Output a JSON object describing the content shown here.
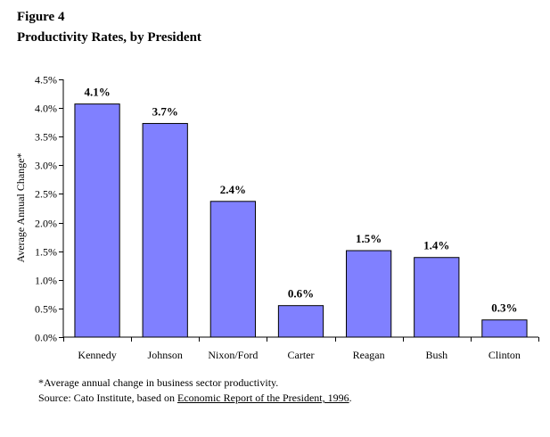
{
  "figure": {
    "label": "Figure 4",
    "title": "Productivity Rates, by President"
  },
  "chart_data": {
    "type": "bar",
    "title": "Productivity Rates, by President",
    "categories": [
      "Kennedy",
      "Johnson",
      "Nixon/Ford",
      "Carter",
      "Reagan",
      "Bush",
      "Clinton"
    ],
    "values": [
      4.07,
      3.73,
      2.37,
      0.55,
      1.51,
      1.39,
      0.3
    ],
    "data_labels": [
      "4.1%",
      "3.7%",
      "2.4%",
      "0.6%",
      "1.5%",
      "1.4%",
      "0.3%"
    ],
    "ylabel": "Average Annual Change*",
    "xlabel": "",
    "ylim": [
      0,
      4.5
    ],
    "yticks": [
      0,
      0.5,
      1.0,
      1.5,
      2.0,
      2.5,
      3.0,
      3.5,
      4.0,
      4.5
    ],
    "ytick_labels": [
      "0.0%",
      "0.5%",
      "1.0%",
      "1.5%",
      "2.0%",
      "2.5%",
      "3.0%",
      "3.5%",
      "4.0%",
      "4.5%"
    ],
    "grid": false,
    "legend": "none",
    "bar_color": "#8080FF"
  },
  "footnote": {
    "note": "*Average annual change in business sector productivity.",
    "source_prefix": "Source: Cato Institute, based on ",
    "source_link": "Economic Report of the President, 1996",
    "source_suffix": "."
  }
}
